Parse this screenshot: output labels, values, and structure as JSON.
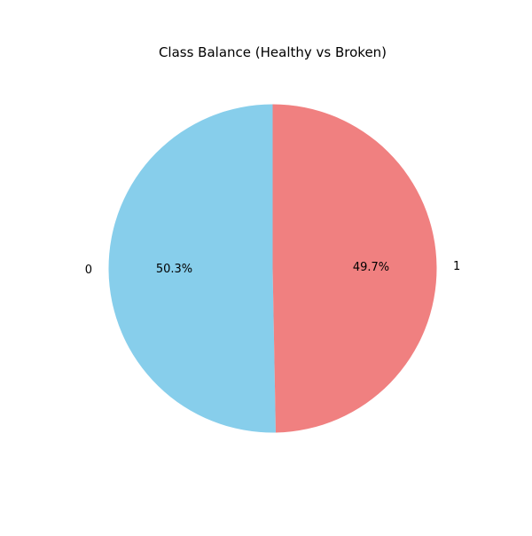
{
  "chart_data": {
    "type": "pie",
    "title": "Class Balance (Healthy vs Broken)",
    "start_angle_deg": 90,
    "counterclockwise": true,
    "slices": [
      {
        "label": "0",
        "value": 50.3,
        "pct_label": "50.3%",
        "color": "#87CEEB"
      },
      {
        "label": "1",
        "value": 49.7,
        "pct_label": "49.7%",
        "color": "#F08080"
      }
    ]
  }
}
